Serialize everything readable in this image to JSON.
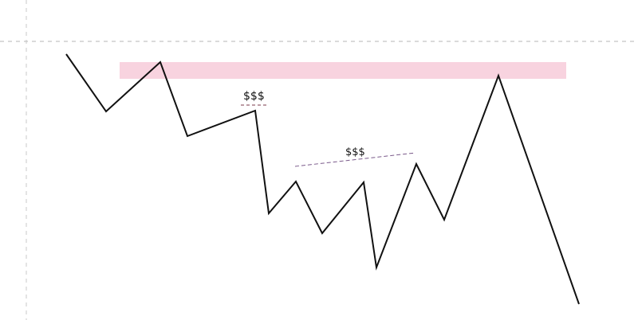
{
  "diagram": {
    "liquidity_labels": {
      "upper": "$$$",
      "lower": "$$$"
    },
    "colors": {
      "background": "#ffffff",
      "price_line": "#111111",
      "supply_zone": "#f8d3df",
      "guide_line": "#b5b5b5",
      "liquidity_line_upper": "#7a3a4a",
      "liquidity_line_lower": "#7a5a8a",
      "text": "#111111"
    }
  }
}
